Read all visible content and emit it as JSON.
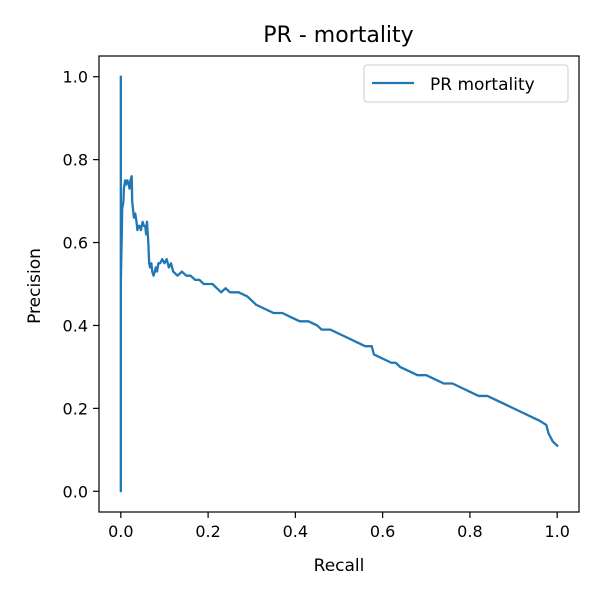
{
  "chart_data": {
    "type": "line",
    "title": "PR - mortality",
    "xlabel": "Recall",
    "ylabel": "Precision",
    "xlim": [
      -0.05,
      1.05
    ],
    "ylim": [
      -0.05,
      1.05
    ],
    "xticks": [
      0.0,
      0.2,
      0.4,
      0.6,
      0.8,
      1.0
    ],
    "xtick_labels": [
      "0.0",
      "0.2",
      "0.4",
      "0.6",
      "0.8",
      "1.0"
    ],
    "yticks": [
      0.0,
      0.2,
      0.4,
      0.6,
      0.8,
      1.0
    ],
    "ytick_labels": [
      "0.0",
      "0.2",
      "0.4",
      "0.6",
      "0.8",
      "1.0"
    ],
    "grid": false,
    "legend_position": "top-right",
    "series": [
      {
        "name": "PR mortality",
        "color": "#1f77b4",
        "x": [
          0.0,
          0.0,
          0.0,
          0.003,
          0.003,
          0.006,
          0.007,
          0.01,
          0.012,
          0.015,
          0.018,
          0.02,
          0.022,
          0.025,
          0.026,
          0.028,
          0.03,
          0.033,
          0.036,
          0.038,
          0.04,
          0.043,
          0.046,
          0.05,
          0.053,
          0.056,
          0.058,
          0.06,
          0.063,
          0.065,
          0.067,
          0.07,
          0.072,
          0.075,
          0.078,
          0.08,
          0.083,
          0.086,
          0.09,
          0.095,
          0.1,
          0.105,
          0.11,
          0.115,
          0.12,
          0.13,
          0.14,
          0.15,
          0.16,
          0.17,
          0.18,
          0.19,
          0.2,
          0.21,
          0.22,
          0.23,
          0.24,
          0.25,
          0.27,
          0.29,
          0.3,
          0.31,
          0.33,
          0.35,
          0.37,
          0.39,
          0.41,
          0.43,
          0.45,
          0.46,
          0.48,
          0.5,
          0.52,
          0.54,
          0.56,
          0.575,
          0.58,
          0.6,
          0.62,
          0.63,
          0.64,
          0.66,
          0.68,
          0.7,
          0.72,
          0.74,
          0.76,
          0.78,
          0.8,
          0.82,
          0.84,
          0.86,
          0.88,
          0.9,
          0.92,
          0.94,
          0.96,
          0.975,
          0.98,
          0.99,
          1.0
        ],
        "y": [
          1.0,
          0.0,
          0.5,
          0.67,
          0.68,
          0.7,
          0.73,
          0.75,
          0.74,
          0.75,
          0.74,
          0.73,
          0.75,
          0.76,
          0.7,
          0.68,
          0.66,
          0.67,
          0.65,
          0.63,
          0.64,
          0.64,
          0.63,
          0.65,
          0.64,
          0.64,
          0.62,
          0.65,
          0.6,
          0.55,
          0.54,
          0.55,
          0.53,
          0.52,
          0.53,
          0.54,
          0.53,
          0.55,
          0.55,
          0.56,
          0.55,
          0.56,
          0.54,
          0.55,
          0.53,
          0.52,
          0.53,
          0.52,
          0.52,
          0.51,
          0.51,
          0.5,
          0.5,
          0.5,
          0.49,
          0.48,
          0.49,
          0.48,
          0.48,
          0.47,
          0.46,
          0.45,
          0.44,
          0.43,
          0.43,
          0.42,
          0.41,
          0.41,
          0.4,
          0.39,
          0.39,
          0.38,
          0.37,
          0.36,
          0.35,
          0.35,
          0.33,
          0.32,
          0.31,
          0.31,
          0.3,
          0.29,
          0.28,
          0.28,
          0.27,
          0.26,
          0.26,
          0.25,
          0.24,
          0.23,
          0.23,
          0.22,
          0.21,
          0.2,
          0.19,
          0.18,
          0.17,
          0.16,
          0.14,
          0.12,
          0.11
        ]
      }
    ]
  }
}
